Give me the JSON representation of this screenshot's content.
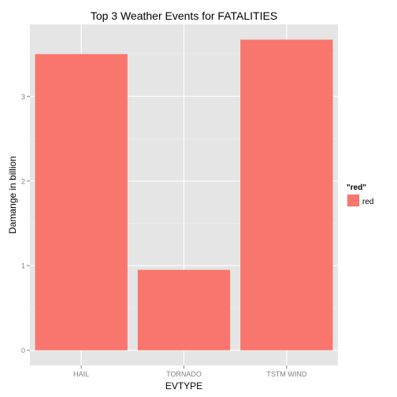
{
  "chart_data": {
    "type": "bar",
    "title": "Top 3 Weather Events for FATALITIES",
    "xlabel": "EVTYPE",
    "ylabel": "Damange in billion",
    "categories": [
      "HAIL",
      "TORNADO",
      "TSTM WIND"
    ],
    "values": [
      3.5,
      0.95,
      3.67
    ],
    "ylim": [
      -0.18,
      3.85
    ],
    "yticks": [
      0,
      1,
      2,
      3
    ],
    "grid": true,
    "legend": {
      "title": "\"red\"",
      "entries": [
        "red"
      ],
      "position": "right"
    },
    "colors": {
      "bar": "#f8766d",
      "panel": "#e5e5e5",
      "grid_major": "#ffffff",
      "grid_minor": "#f2f2f2",
      "tick_text": "#7f7f7f",
      "text": "#000000"
    }
  }
}
